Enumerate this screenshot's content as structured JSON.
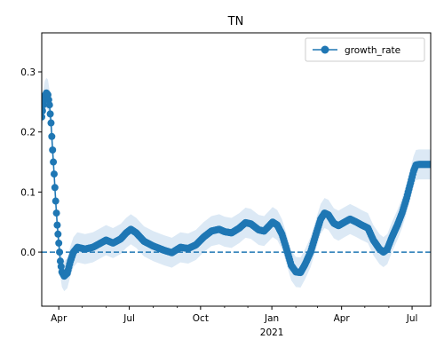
{
  "chart_data": {
    "type": "line",
    "title": "TN",
    "xlabel": "",
    "ylabel": "",
    "x_range": [
      "2020-03-10",
      "2021-07-25"
    ],
    "ylim": [
      -0.09,
      0.365
    ],
    "y_ticks": [
      0.0,
      0.1,
      0.2,
      0.3
    ],
    "y_tick_labels": [
      "0.0",
      "0.1",
      "0.2",
      "0.3"
    ],
    "x_ticks": [
      {
        "date": "2020-04-01",
        "label": "Apr"
      },
      {
        "date": "2020-07-01",
        "label": "Jul"
      },
      {
        "date": "2020-10-01",
        "label": "Oct"
      },
      {
        "date": "2021-01-01",
        "label": "Jan"
      },
      {
        "date": "2021-04-01",
        "label": "Apr"
      },
      {
        "date": "2021-07-01",
        "label": "Jul"
      }
    ],
    "x_year_label": {
      "date": "2021-01-01",
      "label": "2021"
    },
    "x_minor_ticks": [
      "2020-03-01",
      "2020-05-01",
      "2020-06-01",
      "2020-08-01",
      "2020-09-01",
      "2020-11-01",
      "2020-12-01",
      "2021-02-01",
      "2021-03-01",
      "2021-05-01",
      "2021-06-01"
    ],
    "reference_line": {
      "y": 0.0,
      "style": "dashed"
    },
    "legend": {
      "position": "top-right",
      "entries": [
        "growth_rate"
      ]
    },
    "grid": false,
    "colors": {
      "series": "#1f77b4",
      "band": "#dce9f5"
    },
    "series": [
      {
        "name": "growth_rate",
        "marker": "circle",
        "band_halfwidth": 0.025,
        "points": [
          [
            "2020-03-10",
            0.225
          ],
          [
            "2020-03-12",
            0.245
          ],
          [
            "2020-03-14",
            0.26
          ],
          [
            "2020-03-16",
            0.265
          ],
          [
            "2020-03-18",
            0.262
          ],
          [
            "2020-03-20",
            0.245
          ],
          [
            "2020-03-22",
            0.215
          ],
          [
            "2020-03-24",
            0.17
          ],
          [
            "2020-03-26",
            0.13
          ],
          [
            "2020-03-28",
            0.085
          ],
          [
            "2020-03-30",
            0.045
          ],
          [
            "2020-04-01",
            0.015
          ],
          [
            "2020-04-03",
            -0.015
          ],
          [
            "2020-04-05",
            -0.033
          ],
          [
            "2020-04-08",
            -0.04
          ],
          [
            "2020-04-12",
            -0.035
          ],
          [
            "2020-04-16",
            -0.015
          ],
          [
            "2020-04-20",
            0.0
          ],
          [
            "2020-04-25",
            0.008
          ],
          [
            "2020-05-05",
            0.005
          ],
          [
            "2020-05-15",
            0.008
          ],
          [
            "2020-05-25",
            0.015
          ],
          [
            "2020-06-01",
            0.02
          ],
          [
            "2020-06-10",
            0.015
          ],
          [
            "2020-06-20",
            0.022
          ],
          [
            "2020-06-27",
            0.032
          ],
          [
            "2020-07-03",
            0.038
          ],
          [
            "2020-07-10",
            0.032
          ],
          [
            "2020-07-20",
            0.018
          ],
          [
            "2020-08-01",
            0.01
          ],
          [
            "2020-08-15",
            0.003
          ],
          [
            "2020-08-25",
            -0.001
          ],
          [
            "2020-09-05",
            0.008
          ],
          [
            "2020-09-15",
            0.006
          ],
          [
            "2020-09-25",
            0.012
          ],
          [
            "2020-10-05",
            0.025
          ],
          [
            "2020-10-15",
            0.035
          ],
          [
            "2020-10-25",
            0.038
          ],
          [
            "2020-11-01",
            0.034
          ],
          [
            "2020-11-10",
            0.032
          ],
          [
            "2020-11-20",
            0.04
          ],
          [
            "2020-11-28",
            0.049
          ],
          [
            "2020-12-05",
            0.047
          ],
          [
            "2020-12-15",
            0.037
          ],
          [
            "2020-12-22",
            0.035
          ],
          [
            "2020-12-28",
            0.043
          ],
          [
            "2021-01-02",
            0.05
          ],
          [
            "2021-01-08",
            0.045
          ],
          [
            "2021-01-14",
            0.03
          ],
          [
            "2021-01-20",
            0.005
          ],
          [
            "2021-01-26",
            -0.022
          ],
          [
            "2021-02-01",
            -0.033
          ],
          [
            "2021-02-07",
            -0.034
          ],
          [
            "2021-02-13",
            -0.02
          ],
          [
            "2021-02-20",
            0.0
          ],
          [
            "2021-02-27",
            0.03
          ],
          [
            "2021-03-05",
            0.055
          ],
          [
            "2021-03-10",
            0.065
          ],
          [
            "2021-03-15",
            0.062
          ],
          [
            "2021-03-22",
            0.048
          ],
          [
            "2021-03-28",
            0.044
          ],
          [
            "2021-04-05",
            0.05
          ],
          [
            "2021-04-12",
            0.055
          ],
          [
            "2021-04-20",
            0.05
          ],
          [
            "2021-04-27",
            0.045
          ],
          [
            "2021-05-05",
            0.04
          ],
          [
            "2021-05-12",
            0.02
          ],
          [
            "2021-05-20",
            0.005
          ],
          [
            "2021-05-25",
            0.0
          ],
          [
            "2021-05-30",
            0.005
          ],
          [
            "2021-06-05",
            0.025
          ],
          [
            "2021-06-12",
            0.045
          ],
          [
            "2021-06-18",
            0.065
          ],
          [
            "2021-06-24",
            0.09
          ],
          [
            "2021-06-30",
            0.12
          ],
          [
            "2021-07-03",
            0.135
          ],
          [
            "2021-07-06",
            0.145
          ],
          [
            "2021-07-10",
            0.146
          ],
          [
            "2021-07-15",
            0.146
          ],
          [
            "2021-07-20",
            0.146
          ],
          [
            "2021-07-25",
            0.146
          ]
        ]
      }
    ]
  }
}
